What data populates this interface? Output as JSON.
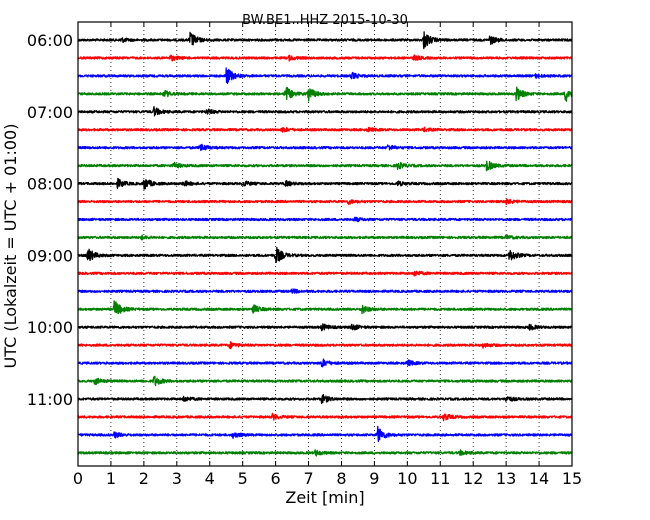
{
  "chart_data": {
    "type": "line",
    "title": "BW.BE1..HHZ 2015-10-30",
    "xlabel": "Zeit  [min]",
    "ylabel": "UTC (Lokalzeit = UTC + 01:00)",
    "xlim": [
      0,
      15
    ],
    "x_ticks": [
      "0",
      "1",
      "2",
      "3",
      "4",
      "5",
      "6",
      "7",
      "8",
      "9",
      "10",
      "11",
      "12",
      "13",
      "14",
      "15"
    ],
    "y_tick_labels": [
      "06:00",
      "07:00",
      "08:00",
      "09:00",
      "10:00",
      "11:00"
    ],
    "y_tick_trace_index": [
      0,
      4,
      8,
      12,
      16,
      20
    ],
    "grid": "vertical dotted",
    "colors": [
      "#000000",
      "#ff0000",
      "#0000ff",
      "#008000"
    ],
    "traces": [
      {
        "start": "06:00",
        "color": "#000000",
        "events": [
          {
            "x": 1.3,
            "amp": 0.25
          },
          {
            "x": 3.4,
            "amp": 0.9
          },
          {
            "x": 10.5,
            "amp": 1.0
          },
          {
            "x": 12.5,
            "amp": 0.5
          }
        ]
      },
      {
        "start": "06:15",
        "color": "#ff0000",
        "events": [
          {
            "x": 2.8,
            "amp": 0.3
          },
          {
            "x": 6.4,
            "amp": 0.25
          },
          {
            "x": 10.2,
            "amp": 0.25
          }
        ]
      },
      {
        "start": "06:30",
        "color": "#0000ff",
        "events": [
          {
            "x": 4.5,
            "amp": 1.0
          },
          {
            "x": 8.3,
            "amp": 0.35
          },
          {
            "x": 13.9,
            "amp": 0.2
          }
        ]
      },
      {
        "start": "06:45",
        "color": "#008000",
        "events": [
          {
            "x": 2.6,
            "amp": 0.4
          },
          {
            "x": 6.3,
            "amp": 0.8
          },
          {
            "x": 7.0,
            "amp": 0.7
          },
          {
            "x": 13.3,
            "amp": 0.8
          },
          {
            "x": 14.8,
            "amp": 0.9
          }
        ]
      },
      {
        "start": "07:00",
        "color": "#000000",
        "events": [
          {
            "x": 2.3,
            "amp": 0.5
          },
          {
            "x": 3.9,
            "amp": 0.3
          }
        ]
      },
      {
        "start": "07:15",
        "color": "#ff0000",
        "events": [
          {
            "x": 6.2,
            "amp": 0.25
          },
          {
            "x": 8.8,
            "amp": 0.2
          },
          {
            "x": 10.5,
            "amp": 0.2
          }
        ]
      },
      {
        "start": "07:30",
        "color": "#0000ff",
        "events": [
          {
            "x": 3.7,
            "amp": 0.45
          },
          {
            "x": 9.4,
            "amp": 0.3
          }
        ]
      },
      {
        "start": "07:45",
        "color": "#008000",
        "events": [
          {
            "x": 2.9,
            "amp": 0.3
          },
          {
            "x": 9.7,
            "amp": 0.4
          },
          {
            "x": 12.4,
            "amp": 0.6
          }
        ]
      },
      {
        "start": "08:00",
        "color": "#000000",
        "events": [
          {
            "x": 1.2,
            "amp": 0.5
          },
          {
            "x": 2.0,
            "amp": 0.7
          },
          {
            "x": 3.2,
            "amp": 0.3
          },
          {
            "x": 5.0,
            "amp": 0.3
          },
          {
            "x": 6.3,
            "amp": 0.3
          },
          {
            "x": 9.7,
            "amp": 0.25
          }
        ]
      },
      {
        "start": "08:15",
        "color": "#ff0000",
        "events": [
          {
            "x": 8.2,
            "amp": 0.25
          },
          {
            "x": 13.0,
            "amp": 0.3
          }
        ]
      },
      {
        "start": "08:30",
        "color": "#0000ff",
        "events": [
          {
            "x": 8.4,
            "amp": 0.2
          }
        ]
      },
      {
        "start": "08:45",
        "color": "#008000",
        "events": [
          {
            "x": 1.9,
            "amp": 0.2
          },
          {
            "x": 13.0,
            "amp": 0.2
          }
        ]
      },
      {
        "start": "09:00",
        "color": "#000000",
        "events": [
          {
            "x": 0.3,
            "amp": 0.8
          },
          {
            "x": 6.0,
            "amp": 1.0
          },
          {
            "x": 13.1,
            "amp": 0.7
          }
        ]
      },
      {
        "start": "09:15",
        "color": "#ff0000",
        "events": [
          {
            "x": 10.2,
            "amp": 0.3
          }
        ]
      },
      {
        "start": "09:30",
        "color": "#0000ff",
        "events": [
          {
            "x": 6.5,
            "amp": 0.2
          }
        ]
      },
      {
        "start": "09:45",
        "color": "#008000",
        "events": [
          {
            "x": 1.1,
            "amp": 1.0
          },
          {
            "x": 5.3,
            "amp": 0.5
          },
          {
            "x": 8.6,
            "amp": 0.5
          }
        ]
      },
      {
        "start": "10:00",
        "color": "#000000",
        "events": [
          {
            "x": 7.4,
            "amp": 0.35
          },
          {
            "x": 8.3,
            "amp": 0.35
          },
          {
            "x": 13.7,
            "amp": 0.3
          }
        ]
      },
      {
        "start": "10:15",
        "color": "#ff0000",
        "events": [
          {
            "x": 4.6,
            "amp": 0.35
          },
          {
            "x": 12.3,
            "amp": 0.25
          }
        ]
      },
      {
        "start": "10:30",
        "color": "#0000ff",
        "events": [
          {
            "x": 7.4,
            "amp": 0.45
          },
          {
            "x": 10.0,
            "amp": 0.3
          }
        ]
      },
      {
        "start": "10:45",
        "color": "#008000",
        "events": [
          {
            "x": 0.5,
            "amp": 0.35
          },
          {
            "x": 2.3,
            "amp": 0.6
          }
        ]
      },
      {
        "start": "11:00",
        "color": "#000000",
        "events": [
          {
            "x": 3.2,
            "amp": 0.3
          },
          {
            "x": 7.4,
            "amp": 0.5
          },
          {
            "x": 13.0,
            "amp": 0.35
          }
        ]
      },
      {
        "start": "11:15",
        "color": "#ff0000",
        "events": [
          {
            "x": 5.9,
            "amp": 0.3
          },
          {
            "x": 11.1,
            "amp": 0.4
          }
        ]
      },
      {
        "start": "11:30",
        "color": "#0000ff",
        "events": [
          {
            "x": 1.1,
            "amp": 0.3
          },
          {
            "x": 4.7,
            "amp": 0.3
          },
          {
            "x": 9.1,
            "amp": 0.9
          }
        ]
      },
      {
        "start": "11:45",
        "color": "#008000",
        "events": [
          {
            "x": 7.2,
            "amp": 0.3
          },
          {
            "x": 11.6,
            "amp": 0.25
          }
        ]
      }
    ]
  }
}
